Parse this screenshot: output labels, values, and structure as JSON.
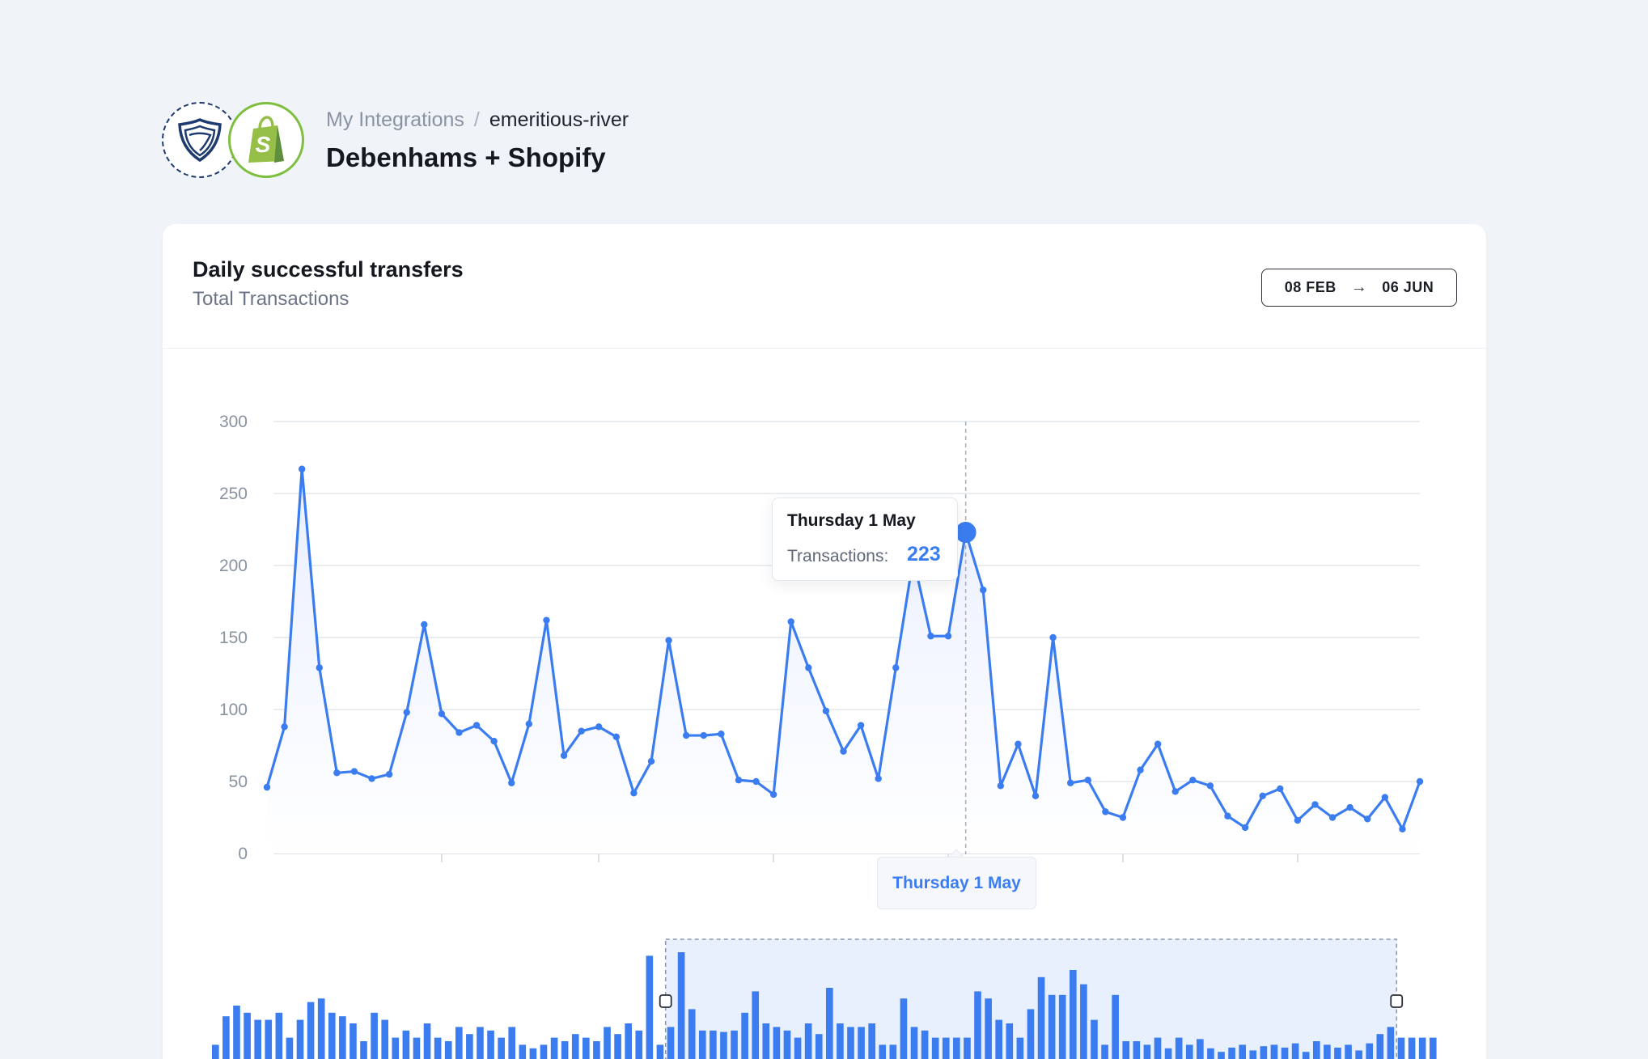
{
  "breadcrumb": {
    "root": "My Integrations",
    "separator": "/",
    "current": "emeritious-river"
  },
  "page": {
    "title": "Debenhams + Shopify"
  },
  "logos": {
    "primary": "debenhams-logo",
    "secondary": "shopify-logo"
  },
  "card": {
    "title": "Daily successful transfers",
    "subtitle": "Total Transactions",
    "date_range": {
      "start": "08 FEB",
      "arrow": "→",
      "end": "06 JUN"
    }
  },
  "tooltip": {
    "date": "Thursday 1 May",
    "label": "Transactions:",
    "value": "223"
  },
  "crosshair_label": "Thursday 1 May",
  "colors": {
    "accent": "#3b7df0",
    "grid": "#e4e7ec",
    "selection": "#e8f0fd",
    "background": "#f0f3f8"
  },
  "chart_data": {
    "type": "line",
    "title": "Daily successful transfers",
    "ylabel": "Total Transactions",
    "ylim": [
      0,
      300
    ],
    "yticks": [
      0,
      50,
      100,
      150,
      200,
      250,
      300
    ],
    "highlight_index": 40,
    "values": [
      46,
      88,
      267,
      129,
      56,
      57,
      52,
      55,
      98,
      159,
      97,
      84,
      89,
      78,
      49,
      90,
      162,
      68,
      85,
      88,
      81,
      42,
      64,
      148,
      82,
      82,
      83,
      51,
      50,
      41,
      161,
      129,
      99,
      71,
      89,
      52,
      129,
      205,
      151,
      151,
      223,
      183,
      47,
      76,
      40,
      150,
      49,
      51,
      29,
      25,
      58,
      76,
      43,
      51,
      47,
      26,
      18,
      40,
      45,
      23,
      34,
      25,
      32,
      24,
      39,
      17,
      50
    ],
    "navigator": {
      "type": "bar",
      "values": [
        20,
        60,
        75,
        65,
        55,
        55,
        65,
        30,
        55,
        80,
        85,
        65,
        60,
        50,
        25,
        65,
        55,
        30,
        40,
        30,
        50,
        30,
        25,
        45,
        35,
        45,
        40,
        30,
        45,
        20,
        15,
        20,
        30,
        25,
        35,
        30,
        25,
        45,
        35,
        50,
        40,
        145,
        20,
        45,
        150,
        70,
        40,
        40,
        38,
        40,
        65,
        95,
        50,
        45,
        40,
        30,
        50,
        35,
        100,
        50,
        45,
        45,
        50,
        20,
        20,
        85,
        45,
        40,
        30,
        30,
        30,
        30,
        95,
        85,
        55,
        50,
        30,
        70,
        115,
        90,
        90,
        125,
        105,
        55,
        20,
        90,
        25,
        25,
        20,
        30,
        15,
        30,
        20,
        28,
        15,
        10,
        16,
        20,
        12,
        18,
        20,
        16,
        22,
        10,
        25,
        20,
        16,
        20,
        12,
        22,
        35,
        45,
        30,
        30,
        30,
        30
      ],
      "selection": {
        "start_index": 43,
        "end_index": 111
      }
    }
  }
}
